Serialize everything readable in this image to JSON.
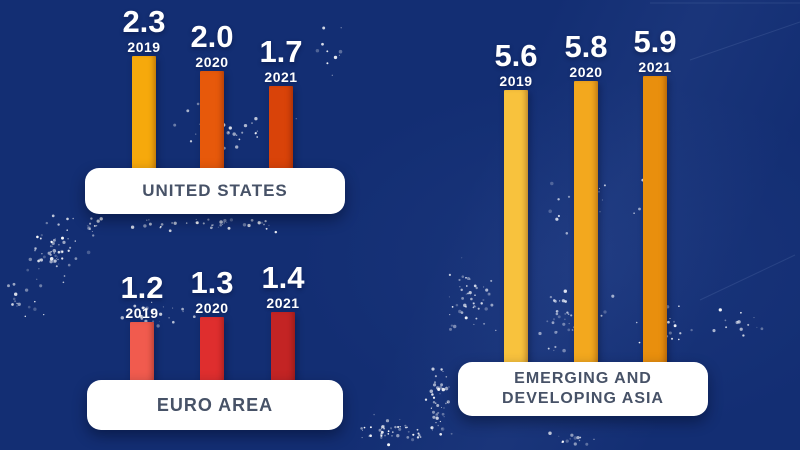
{
  "background": {
    "color": "#132E73",
    "particle_color": "#FFFFFF"
  },
  "chart_data": {
    "type": "bar",
    "legend_position": "none",
    "grid": false,
    "value_text_color": "#FFFFFF",
    "label_text_color": "#475267",
    "label_box_color": "#FFFFFF",
    "groups": [
      {
        "label": "UNITED STATES",
        "categories": [
          "2019",
          "2020",
          "2021"
        ],
        "values": [
          2.3,
          2.0,
          1.7
        ],
        "value_labels": [
          "2.3",
          "2.0",
          "1.7"
        ],
        "bar_colors": [
          "#F6A90C",
          "#E7590B",
          "#D94309"
        ]
      },
      {
        "label": "EURO AREA",
        "categories": [
          "2019",
          "2020",
          "2021"
        ],
        "values": [
          1.2,
          1.3,
          1.4
        ],
        "value_labels": [
          "1.2",
          "1.3",
          "1.4"
        ],
        "bar_colors": [
          "#F15B4E",
          "#DF2E2E",
          "#C32424"
        ]
      },
      {
        "label": "EMERGING AND DEVELOPING ASIA",
        "categories": [
          "2019",
          "2020",
          "2021"
        ],
        "values": [
          5.6,
          5.8,
          5.9
        ],
        "value_labels": [
          "5.6",
          "5.8",
          "5.9"
        ],
        "bar_colors": [
          "#F8C23D",
          "#F3A81E",
          "#E98F0D"
        ]
      }
    ]
  }
}
